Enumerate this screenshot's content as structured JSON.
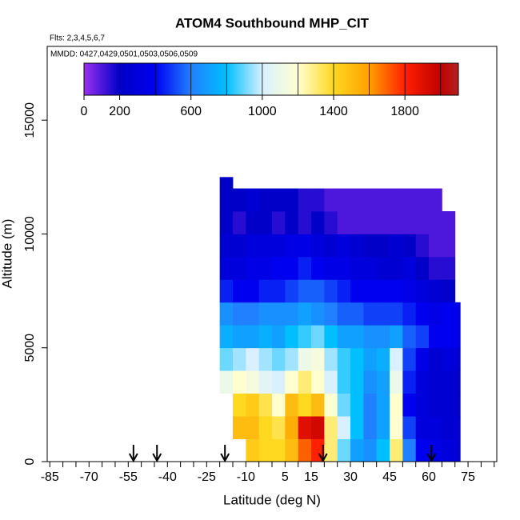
{
  "chart_data": {
    "type": "heatmap",
    "title": "ATOM4 Southbound MHP_CIT",
    "subtitle": "Flts: 2,3,4,5,6,7",
    "annotation": "MMDD: 0427,0429,0501,0503,0506,0509",
    "x_label": "Latitude (deg N)",
    "y_label": "Altitude (m)",
    "xlim": [
      -86,
      86
    ],
    "ylim": [
      0,
      18240
    ],
    "xticks": [
      -85,
      -70,
      -55,
      -40,
      -25,
      -10,
      5,
      15,
      30,
      45,
      60,
      75
    ],
    "xminor_ticks": [
      -80,
      -75,
      -65,
      -60,
      -50,
      -45,
      -35,
      -30,
      -20,
      -15,
      -5,
      0,
      10,
      20,
      25,
      35,
      40,
      50,
      55,
      65,
      70,
      80,
      85
    ],
    "yticks": [
      0,
      5000,
      10000,
      15000
    ],
    "x_edges": [
      -20,
      -15,
      -10,
      -5,
      0,
      5,
      10,
      15,
      20,
      25,
      30,
      35,
      40,
      45,
      50,
      55,
      60,
      65,
      70,
      72
    ],
    "y_edges": [
      0,
      1000,
      2000,
      3000,
      4000,
      5000,
      6000,
      7000,
      8000,
      9000,
      10000,
      11000,
      12000,
      12500
    ],
    "z": [
      [
        null,
        null,
        1450,
        1400,
        1400,
        1500,
        1700,
        1800,
        1300,
        900,
        700,
        650,
        800,
        1300,
        600,
        400,
        350,
        300,
        250
      ],
      [
        null,
        1500,
        1500,
        1400,
        1350,
        1550,
        1900,
        1950,
        1300,
        1000,
        800,
        600,
        700,
        1200,
        500,
        300,
        300,
        250,
        250
      ],
      [
        null,
        1400,
        1450,
        1350,
        1200,
        1500,
        1400,
        1500,
        1200,
        900,
        800,
        600,
        700,
        1200,
        400,
        300,
        250,
        250,
        200
      ],
      [
        1100,
        1200,
        1150,
        1050,
        1000,
        1200,
        1300,
        1200,
        1000,
        850,
        800,
        650,
        700,
        1100,
        450,
        300,
        250,
        250,
        200
      ],
      [
        900,
        950,
        1000,
        950,
        900,
        950,
        1100,
        1150,
        950,
        850,
        800,
        700,
        750,
        1000,
        500,
        350,
        250,
        300,
        250
      ],
      [
        750,
        700,
        700,
        750,
        700,
        800,
        850,
        900,
        800,
        700,
        700,
        650,
        650,
        700,
        550,
        500,
        400,
        400,
        350
      ],
      [
        650,
        600,
        600,
        650,
        650,
        650,
        700,
        650,
        600,
        550,
        550,
        500,
        500,
        500,
        450,
        400,
        350,
        400,
        350
      ],
      [
        450,
        400,
        400,
        450,
        450,
        500,
        550,
        550,
        500,
        450,
        400,
        400,
        400,
        400,
        350,
        300,
        250,
        200,
        null
      ],
      [
        300,
        300,
        350,
        350,
        400,
        400,
        450,
        400,
        350,
        350,
        300,
        300,
        250,
        250,
        300,
        200,
        150,
        150,
        null
      ],
      [
        250,
        250,
        300,
        300,
        300,
        350,
        350,
        300,
        250,
        300,
        250,
        200,
        200,
        250,
        200,
        150,
        100,
        100,
        null
      ],
      [
        200,
        150,
        200,
        200,
        150,
        200,
        150,
        200,
        150,
        100,
        100,
        100,
        100,
        100,
        100,
        100,
        100,
        100,
        null
      ],
      [
        200,
        200,
        250,
        200,
        200,
        200,
        150,
        150,
        100,
        100,
        100,
        100,
        100,
        100,
        100,
        100,
        100,
        null,
        null
      ],
      [
        200,
        null,
        null,
        null,
        null,
        null,
        null,
        null,
        null,
        null,
        null,
        null,
        null,
        null,
        null,
        null,
        null,
        null,
        null
      ]
    ],
    "colorscale": [
      [
        0,
        "#9a30f0"
      ],
      [
        200,
        "#0000c8"
      ],
      [
        400,
        "#0000f0"
      ],
      [
        600,
        "#2080ff"
      ],
      [
        800,
        "#00bfff"
      ],
      [
        1000,
        "#d8f0ff"
      ],
      [
        1200,
        "#ffffd0"
      ],
      [
        1400,
        "#ffd820"
      ],
      [
        1600,
        "#ffa000"
      ],
      [
        1800,
        "#ff2000"
      ],
      [
        2000,
        "#c00000"
      ],
      [
        2100,
        "#b22222"
      ]
    ],
    "colorbar_lim": [
      0,
      2100
    ],
    "colorbar_ticks": [
      0,
      200,
      600,
      1000,
      1400,
      1800
    ],
    "colorbar_breaks": [
      200,
      400,
      600,
      800,
      1000,
      1200,
      1400,
      1600,
      1800,
      2000
    ],
    "markers_x": [
      -53,
      -44,
      -18,
      19.5,
      61
    ]
  }
}
